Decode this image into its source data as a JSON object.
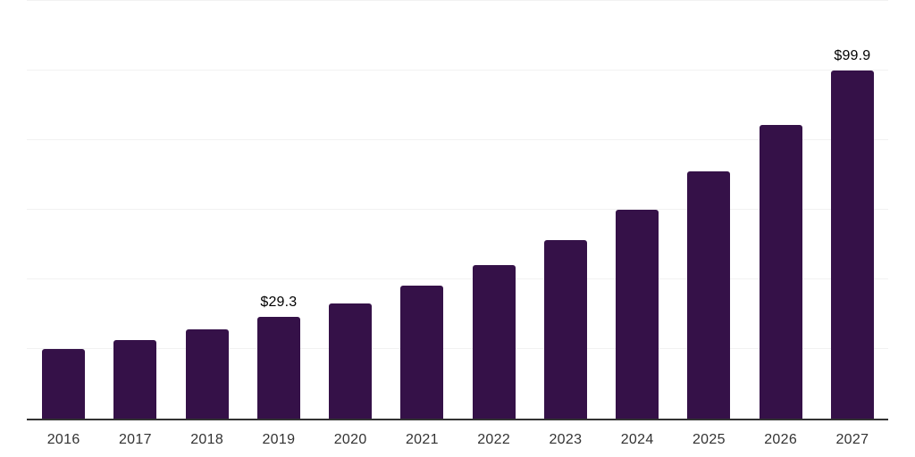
{
  "chart_data": {
    "type": "bar",
    "title": "",
    "xlabel": "",
    "ylabel": "",
    "categories": [
      "2016",
      "2017",
      "2018",
      "2019",
      "2020",
      "2021",
      "2022",
      "2023",
      "2024",
      "2025",
      "2026",
      "2027"
    ],
    "values": [
      20.1,
      22.6,
      25.7,
      29.3,
      33.1,
      38.2,
      44.2,
      51.3,
      60.1,
      71.1,
      84.4,
      99.9
    ],
    "point_labels": [
      "",
      "",
      "",
      "$29.3",
      "",
      "",
      "",
      "",
      "",
      "",
      "",
      "$99.9"
    ],
    "ylim": [
      0,
      120
    ],
    "gridline_step": 20,
    "grid": true,
    "legend": false,
    "y_axis_tick_labels_visible": false,
    "colors": {
      "bar": "#351148",
      "gridline": "#f2f2f2",
      "axis": "#333333",
      "tick_label": "#333333",
      "value_label": "#000000",
      "background": "#ffffff"
    }
  }
}
